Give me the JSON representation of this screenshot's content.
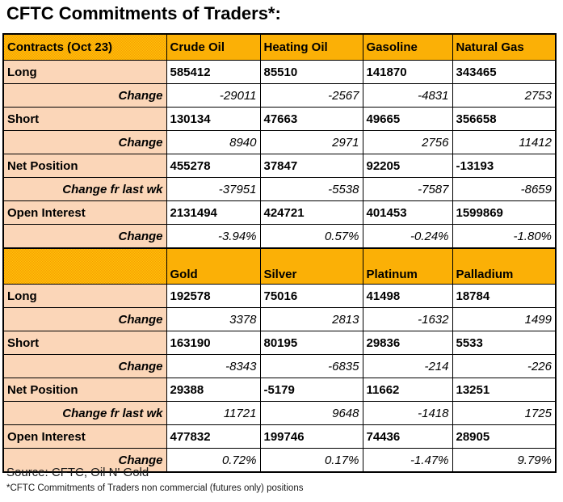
{
  "title": "CFTC Commitments of Traders*:",
  "colors": {
    "header_bg": "#fbae00",
    "label_bg": "#fbd5b5",
    "positive": "#008000",
    "negative": "#ff0000",
    "border": "#000000"
  },
  "table": {
    "sections": [
      {
        "header": {
          "label": "Contracts (Oct 23)",
          "columns": [
            "Crude Oil",
            "Heating Oil",
            "Gasoline",
            "Natural Gas"
          ]
        },
        "rows": [
          {
            "label": "Long",
            "style": "bold",
            "values": [
              "585412",
              "85510",
              "141870",
              "343465"
            ]
          },
          {
            "label": "Change",
            "style": "change",
            "values": [
              "-29011",
              "-2567",
              "-4831",
              "2753"
            ]
          },
          {
            "label": "Short",
            "style": "bold",
            "values": [
              "130134",
              "47663",
              "49665",
              "356658"
            ]
          },
          {
            "label": "Change",
            "style": "change",
            "values": [
              "8940",
              "2971",
              "2756",
              "11412"
            ]
          },
          {
            "label": "Net Position",
            "style": "net",
            "values": [
              "455278",
              "37847",
              "92205",
              "-13193"
            ]
          },
          {
            "label": "Change fr last wk",
            "style": "change",
            "values": [
              "-37951",
              "-5538",
              "-7587",
              "-8659"
            ]
          },
          {
            "label": "Open Interest",
            "style": "bold",
            "values": [
              "2131494",
              "424721",
              "401453",
              "1599869"
            ]
          },
          {
            "label": "Change",
            "style": "change",
            "values": [
              "-3.94%",
              "0.57%",
              "-0.24%",
              "-1.80%"
            ]
          }
        ]
      },
      {
        "header": {
          "label": "",
          "columns": [
            "Gold",
            "Silver",
            "Platinum",
            "Palladium"
          ]
        },
        "rows": [
          {
            "label": "Long",
            "style": "bold",
            "values": [
              "192578",
              "75016",
              "41498",
              "18784"
            ]
          },
          {
            "label": "Change",
            "style": "change",
            "values": [
              "3378",
              "2813",
              "-1632",
              "1499"
            ]
          },
          {
            "label": "Short",
            "style": "bold",
            "values": [
              "163190",
              "80195",
              "29836",
              "5533"
            ]
          },
          {
            "label": "Change",
            "style": "change",
            "values": [
              "-8343",
              "-6835",
              "-214",
              "-226"
            ]
          },
          {
            "label": "Net Position",
            "style": "net",
            "values": [
              "29388",
              "-5179",
              "11662",
              "13251"
            ]
          },
          {
            "label": "Change fr last wk",
            "style": "change",
            "values": [
              "11721",
              "9648",
              "-1418",
              "1725"
            ]
          },
          {
            "label": "Open Interest",
            "style": "bold",
            "values": [
              "477832",
              "199746",
              "74436",
              "28905"
            ]
          },
          {
            "label": "Change",
            "style": "change",
            "values": [
              "0.72%",
              "0.17%",
              "-1.47%",
              "9.79%"
            ]
          }
        ]
      }
    ]
  },
  "footer": {
    "source": "Source: CFTC, Oil N' Gold",
    "note": "*CFTC Commitments of Traders non commercial (futures only) positions"
  }
}
